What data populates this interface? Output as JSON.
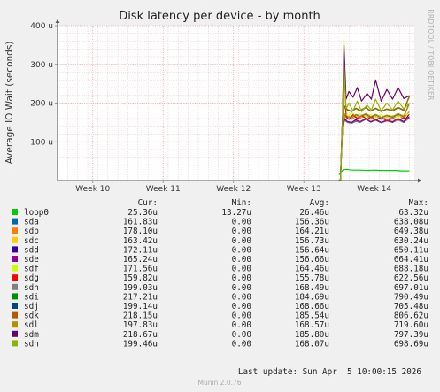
{
  "chart_data": {
    "type": "line",
    "title": "Disk latency per device - by month",
    "ylabel": "Average IO Wait (seconds)",
    "side_label": "RRDTOOL / TOBI OETIKER",
    "xlim": [
      0,
      5.07
    ],
    "ylim": [
      0,
      400
    ],
    "grid": true,
    "x_ticks": [
      {
        "x": 0.5,
        "label": "Week 10"
      },
      {
        "x": 1.5,
        "label": "Week 11"
      },
      {
        "x": 2.5,
        "label": "Week 12"
      },
      {
        "x": 3.5,
        "label": "Week 13"
      },
      {
        "x": 4.5,
        "label": "Week 14"
      }
    ],
    "y_ticks": [
      {
        "y": 100,
        "label": "100 u"
      },
      {
        "y": 200,
        "label": "200 u"
      },
      {
        "y": 300,
        "label": "300 u"
      },
      {
        "y": 400,
        "label": "400 u"
      }
    ],
    "legend_header": {
      "cur": "Cur:",
      "min": "Min:",
      "avg": "Avg:",
      "max": "Max:"
    },
    "series": [
      {
        "name": "loop0",
        "color": "#00cc00",
        "cur": "25.36u",
        "min": "13.27u",
        "avg": "26.46u",
        "max": "63.32u",
        "values": [
          [
            4.0,
            15
          ],
          [
            4.03,
            22
          ],
          [
            4.06,
            28
          ],
          [
            4.1,
            29
          ],
          [
            4.15,
            28
          ],
          [
            4.2,
            27
          ],
          [
            4.3,
            27
          ],
          [
            4.4,
            26
          ],
          [
            4.5,
            27
          ],
          [
            4.6,
            26
          ],
          [
            4.7,
            26
          ],
          [
            4.8,
            26
          ],
          [
            4.9,
            25
          ],
          [
            5.0,
            25
          ]
        ]
      },
      {
        "name": "sda",
        "color": "#0066b3",
        "cur": "161.83u",
        "min": "0.00",
        "avg": "156.36u",
        "max": "638.08u",
        "values": [
          [
            4.0,
            0
          ],
          [
            4.02,
            0
          ],
          [
            4.05,
            140
          ],
          [
            4.08,
            155
          ],
          [
            4.12,
            150
          ],
          [
            4.18,
            148
          ],
          [
            4.24,
            153
          ],
          [
            4.3,
            150
          ],
          [
            4.38,
            158
          ],
          [
            4.45,
            151
          ],
          [
            4.52,
            156
          ],
          [
            4.6,
            149
          ],
          [
            4.68,
            154
          ],
          [
            4.76,
            150
          ],
          [
            4.84,
            157
          ],
          [
            4.92,
            150
          ],
          [
            5.0,
            162
          ]
        ]
      },
      {
        "name": "sdb",
        "color": "#ff8000",
        "cur": "178.10u",
        "min": "0.00",
        "avg": "164.21u",
        "max": "649.38u",
        "values": [
          [
            4.0,
            0
          ],
          [
            4.02,
            0
          ],
          [
            4.05,
            150
          ],
          [
            4.08,
            165
          ],
          [
            4.12,
            160
          ],
          [
            4.18,
            158
          ],
          [
            4.24,
            165
          ],
          [
            4.3,
            161
          ],
          [
            4.38,
            168
          ],
          [
            4.45,
            160
          ],
          [
            4.52,
            166
          ],
          [
            4.6,
            158
          ],
          [
            4.68,
            164
          ],
          [
            4.76,
            160
          ],
          [
            4.84,
            168
          ],
          [
            4.92,
            161
          ],
          [
            5.0,
            178
          ]
        ]
      },
      {
        "name": "sdc",
        "color": "#ffcc00",
        "cur": "163.42u",
        "min": "0.00",
        "avg": "156.73u",
        "max": "630.24u",
        "values": [
          [
            4.0,
            0
          ],
          [
            4.02,
            0
          ],
          [
            4.05,
            142
          ],
          [
            4.08,
            156
          ],
          [
            4.12,
            151
          ],
          [
            4.18,
            149
          ],
          [
            4.24,
            155
          ],
          [
            4.3,
            151
          ],
          [
            4.38,
            159
          ],
          [
            4.45,
            152
          ],
          [
            4.52,
            157
          ],
          [
            4.6,
            150
          ],
          [
            4.68,
            155
          ],
          [
            4.76,
            151
          ],
          [
            4.84,
            158
          ],
          [
            4.92,
            152
          ],
          [
            5.0,
            163
          ]
        ]
      },
      {
        "name": "sdd",
        "color": "#330099",
        "cur": "172.11u",
        "min": "0.00",
        "avg": "156.64u",
        "max": "650.11u",
        "values": [
          [
            4.0,
            0
          ],
          [
            4.02,
            0
          ],
          [
            4.05,
            145
          ],
          [
            4.08,
            160
          ],
          [
            4.12,
            152
          ],
          [
            4.18,
            150
          ],
          [
            4.24,
            157
          ],
          [
            4.3,
            152
          ],
          [
            4.38,
            160
          ],
          [
            4.45,
            151
          ],
          [
            4.52,
            158
          ],
          [
            4.6,
            150
          ],
          [
            4.68,
            156
          ],
          [
            4.76,
            151
          ],
          [
            4.84,
            160
          ],
          [
            4.92,
            152
          ],
          [
            5.0,
            172
          ]
        ]
      },
      {
        "name": "sde",
        "color": "#990099",
        "cur": "165.24u",
        "min": "0.00",
        "avg": "156.66u",
        "max": "664.41u",
        "values": [
          [
            4.0,
            0
          ],
          [
            4.02,
            0
          ],
          [
            4.05,
            143
          ],
          [
            4.08,
            157
          ],
          [
            4.12,
            152
          ],
          [
            4.18,
            149
          ],
          [
            4.24,
            156
          ],
          [
            4.3,
            152
          ],
          [
            4.38,
            159
          ],
          [
            4.45,
            152
          ],
          [
            4.52,
            157
          ],
          [
            4.6,
            150
          ],
          [
            4.68,
            155
          ],
          [
            4.76,
            152
          ],
          [
            4.84,
            159
          ],
          [
            4.92,
            152
          ],
          [
            5.0,
            165
          ]
        ]
      },
      {
        "name": "sdf",
        "color": "#ccff00",
        "cur": "171.56u",
        "min": "0.00",
        "avg": "164.46u",
        "max": "688.18u",
        "values": [
          [
            4.0,
            0
          ],
          [
            4.02,
            0
          ],
          [
            4.05,
            150
          ],
          [
            4.07,
            365
          ],
          [
            4.1,
            175
          ],
          [
            4.14,
            168
          ],
          [
            4.18,
            175
          ],
          [
            4.24,
            166
          ],
          [
            4.3,
            172
          ],
          [
            4.38,
            165
          ],
          [
            4.45,
            170
          ],
          [
            4.52,
            163
          ],
          [
            4.6,
            170
          ],
          [
            4.68,
            162
          ],
          [
            4.76,
            168
          ],
          [
            4.84,
            164
          ],
          [
            4.92,
            170
          ],
          [
            5.0,
            172
          ]
        ]
      },
      {
        "name": "sdg",
        "color": "#ff0000",
        "cur": "159.82u",
        "min": "0.00",
        "avg": "155.78u",
        "max": "622.56u",
        "values": [
          [
            4.0,
            0
          ],
          [
            4.02,
            0
          ],
          [
            4.05,
            140
          ],
          [
            4.07,
            330
          ],
          [
            4.1,
            165
          ],
          [
            4.14,
            158
          ],
          [
            4.2,
            170
          ],
          [
            4.26,
            160
          ],
          [
            4.32,
            168
          ],
          [
            4.4,
            158
          ],
          [
            4.46,
            165
          ],
          [
            4.52,
            156
          ],
          [
            4.6,
            163
          ],
          [
            4.68,
            154
          ],
          [
            4.76,
            160
          ],
          [
            4.84,
            156
          ],
          [
            4.92,
            162
          ],
          [
            5.0,
            160
          ]
        ]
      },
      {
        "name": "sdh",
        "color": "#808080",
        "cur": "199.03u",
        "min": "0.00",
        "avg": "168.49u",
        "max": "697.01u",
        "values": [
          [
            4.0,
            0
          ],
          [
            4.02,
            0
          ],
          [
            4.05,
            155
          ],
          [
            4.08,
            170
          ],
          [
            4.12,
            165
          ],
          [
            4.18,
            162
          ],
          [
            4.24,
            170
          ],
          [
            4.3,
            165
          ],
          [
            4.38,
            172
          ],
          [
            4.45,
            164
          ],
          [
            4.52,
            170
          ],
          [
            4.6,
            162
          ],
          [
            4.68,
            168
          ],
          [
            4.76,
            164
          ],
          [
            4.84,
            172
          ],
          [
            4.92,
            165
          ],
          [
            5.0,
            199
          ]
        ]
      },
      {
        "name": "sdi",
        "color": "#008f00",
        "cur": "217.21u",
        "min": "0.00",
        "avg": "184.69u",
        "max": "790.49u",
        "values": [
          [
            4.0,
            0
          ],
          [
            4.02,
            0
          ],
          [
            4.05,
            165
          ],
          [
            4.08,
            190
          ],
          [
            4.12,
            182
          ],
          [
            4.18,
            178
          ],
          [
            4.24,
            186
          ],
          [
            4.3,
            180
          ],
          [
            4.38,
            188
          ],
          [
            4.45,
            179
          ],
          [
            4.52,
            186
          ],
          [
            4.6,
            178
          ],
          [
            4.68,
            184
          ],
          [
            4.76,
            180
          ],
          [
            4.84,
            188
          ],
          [
            4.92,
            181
          ],
          [
            5.0,
            217
          ]
        ]
      },
      {
        "name": "sdj",
        "color": "#00487d",
        "cur": "199.14u",
        "min": "0.00",
        "avg": "168.66u",
        "max": "705.48u",
        "values": [
          [
            4.0,
            0
          ],
          [
            4.02,
            0
          ],
          [
            4.05,
            155
          ],
          [
            4.08,
            170
          ],
          [
            4.12,
            165
          ],
          [
            4.18,
            163
          ],
          [
            4.24,
            170
          ],
          [
            4.3,
            165
          ],
          [
            4.38,
            172
          ],
          [
            4.45,
            164
          ],
          [
            4.52,
            170
          ],
          [
            4.6,
            162
          ],
          [
            4.68,
            168
          ],
          [
            4.76,
            164
          ],
          [
            4.84,
            172
          ],
          [
            4.92,
            165
          ],
          [
            5.0,
            199
          ]
        ]
      },
      {
        "name": "sdk",
        "color": "#b35a00",
        "cur": "218.15u",
        "min": "0.00",
        "avg": "185.54u",
        "max": "806.62u",
        "values": [
          [
            4.0,
            0
          ],
          [
            4.02,
            0
          ],
          [
            4.05,
            165
          ],
          [
            4.08,
            192
          ],
          [
            4.12,
            183
          ],
          [
            4.18,
            179
          ],
          [
            4.24,
            187
          ],
          [
            4.3,
            181
          ],
          [
            4.38,
            189
          ],
          [
            4.45,
            180
          ],
          [
            4.52,
            187
          ],
          [
            4.6,
            179
          ],
          [
            4.68,
            185
          ],
          [
            4.76,
            181
          ],
          [
            4.84,
            189
          ],
          [
            4.92,
            182
          ],
          [
            5.0,
            218
          ]
        ]
      },
      {
        "name": "sdl",
        "color": "#b38f00",
        "cur": "197.83u",
        "min": "0.00",
        "avg": "168.57u",
        "max": "719.60u",
        "values": [
          [
            4.0,
            0
          ],
          [
            4.02,
            0
          ],
          [
            4.05,
            155
          ],
          [
            4.08,
            172
          ],
          [
            4.12,
            166
          ],
          [
            4.18,
            163
          ],
          [
            4.24,
            171
          ],
          [
            4.3,
            166
          ],
          [
            4.38,
            173
          ],
          [
            4.45,
            165
          ],
          [
            4.52,
            171
          ],
          [
            4.6,
            163
          ],
          [
            4.68,
            169
          ],
          [
            4.76,
            165
          ],
          [
            4.84,
            173
          ],
          [
            4.92,
            166
          ],
          [
            5.0,
            198
          ]
        ]
      },
      {
        "name": "sdm",
        "color": "#6b006b",
        "cur": "218.67u",
        "min": "0.00",
        "avg": "185.80u",
        "max": "797.39u",
        "values": [
          [
            4.0,
            0
          ],
          [
            4.02,
            0
          ],
          [
            4.05,
            165
          ],
          [
            4.07,
            350
          ],
          [
            4.1,
            210
          ],
          [
            4.14,
            230
          ],
          [
            4.2,
            215
          ],
          [
            4.26,
            240
          ],
          [
            4.32,
            205
          ],
          [
            4.4,
            225
          ],
          [
            4.46,
            210
          ],
          [
            4.52,
            260
          ],
          [
            4.6,
            205
          ],
          [
            4.68,
            235
          ],
          [
            4.76,
            210
          ],
          [
            4.84,
            240
          ],
          [
            4.92,
            212
          ],
          [
            5.0,
            219
          ]
        ]
      },
      {
        "name": "sdn",
        "color": "#8fb300",
        "cur": "199.46u",
        "min": "0.00",
        "avg": "168.07u",
        "max": "698.69u",
        "values": [
          [
            4.0,
            0
          ],
          [
            4.02,
            0
          ],
          [
            4.05,
            155
          ],
          [
            4.07,
            300
          ],
          [
            4.1,
            185
          ],
          [
            4.14,
            200
          ],
          [
            4.2,
            180
          ],
          [
            4.26,
            205
          ],
          [
            4.32,
            178
          ],
          [
            4.4,
            195
          ],
          [
            4.46,
            182
          ],
          [
            4.52,
            210
          ],
          [
            4.6,
            180
          ],
          [
            4.68,
            200
          ],
          [
            4.76,
            182
          ],
          [
            4.84,
            205
          ],
          [
            4.92,
            185
          ],
          [
            5.0,
            199
          ]
        ]
      }
    ],
    "last_update": "Last update: Sun Apr  5 10:00:15 2026",
    "footer": "Munin 2.0.76"
  }
}
